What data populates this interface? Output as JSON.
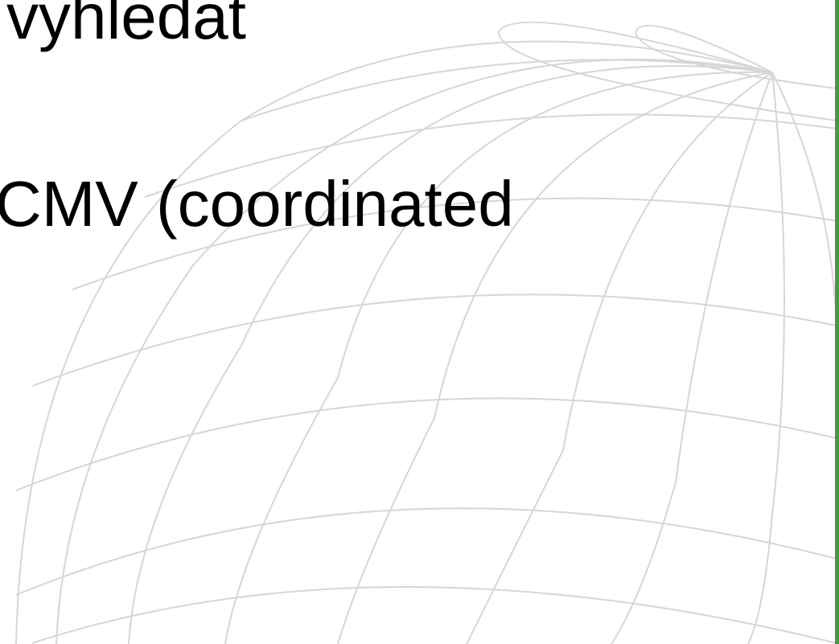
{
  "slide": {
    "text_lines": [
      "vyhledat",
      "CMV (coordinated"
    ],
    "background_icon": "wireframe-globe-icon",
    "accent_color": "#3aa13a",
    "grid_color": "#d6d6d6"
  }
}
